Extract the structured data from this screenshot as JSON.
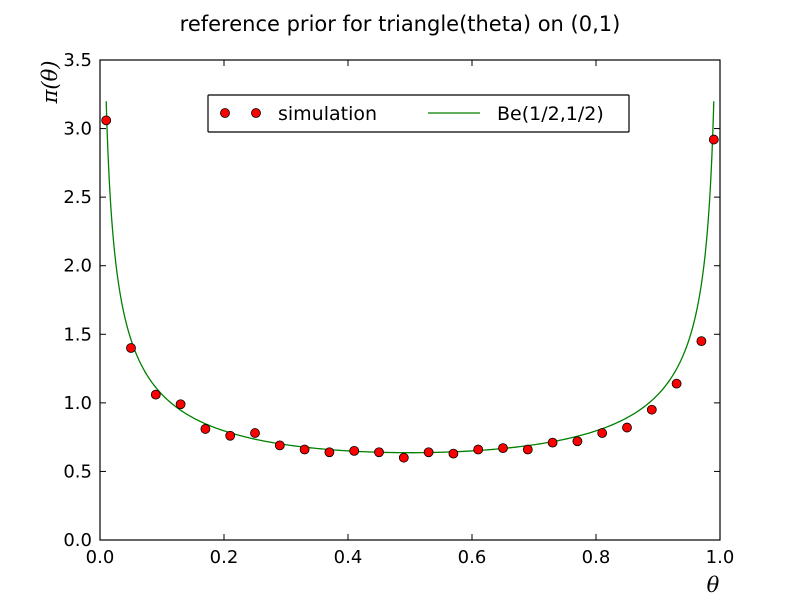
{
  "chart_data": {
    "type": "scatter",
    "title": "reference prior for triangle(theta) on (0,1)",
    "xlabel": "θ",
    "ylabel": "π(θ)",
    "xlim": [
      0,
      1
    ],
    "ylim": [
      0,
      3.5
    ],
    "xticks": [
      "0.0",
      "0.2",
      "0.4",
      "0.6",
      "0.8",
      "1.0"
    ],
    "yticks": [
      "0.0",
      "0.5",
      "1.0",
      "1.5",
      "2.0",
      "2.5",
      "3.0",
      "3.5"
    ],
    "grid": false,
    "legend_position": "top-center",
    "series": [
      {
        "name": "simulation",
        "kind": "markers",
        "color": "#ff0000",
        "x": [
          0.01,
          0.05,
          0.09,
          0.13,
          0.17,
          0.21,
          0.25,
          0.29,
          0.33,
          0.37,
          0.41,
          0.45,
          0.49,
          0.53,
          0.57,
          0.61,
          0.65,
          0.69,
          0.73,
          0.77,
          0.81,
          0.85,
          0.89,
          0.93,
          0.97,
          0.99
        ],
        "y": [
          3.06,
          1.4,
          1.06,
          0.99,
          0.81,
          0.76,
          0.78,
          0.69,
          0.66,
          0.64,
          0.65,
          0.64,
          0.6,
          0.64,
          0.63,
          0.66,
          0.67,
          0.66,
          0.71,
          0.72,
          0.78,
          0.82,
          0.95,
          1.14,
          1.45,
          2.92
        ]
      },
      {
        "name": "Be(1/2,1/2)",
        "kind": "line",
        "color": "#008000",
        "function": "1/(pi*sqrt(x*(1-x)))",
        "x_range": [
          0.01,
          0.99
        ]
      }
    ]
  }
}
